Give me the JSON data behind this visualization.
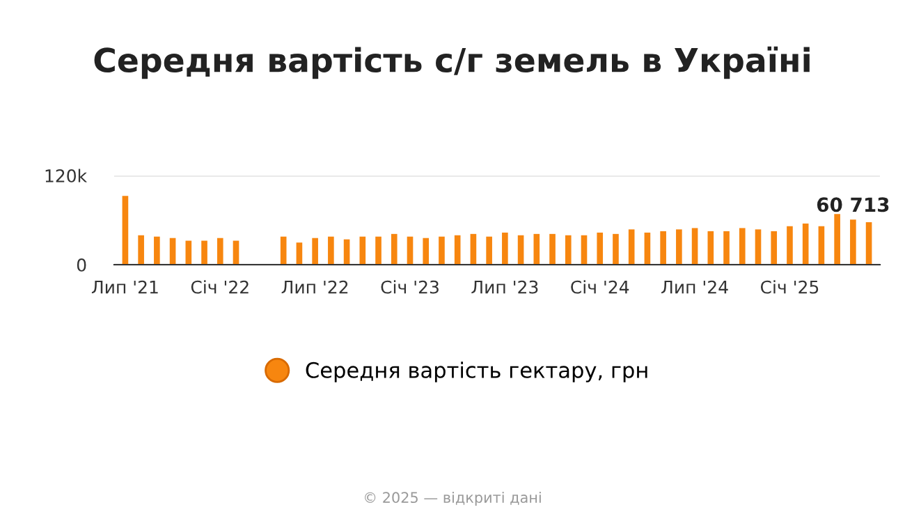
{
  "chart_data": {
    "type": "bar",
    "title": "Середня вартість с/г земель в Україні",
    "categories": [
      "Лип '21",
      null,
      null,
      null,
      null,
      null,
      "Січ '22",
      null,
      null,
      null,
      null,
      null,
      "Лип '22",
      null,
      null,
      null,
      null,
      null,
      "Січ '23",
      null,
      null,
      null,
      null,
      null,
      "Лип '23",
      null,
      null,
      null,
      null,
      null,
      "Січ '24",
      null,
      null,
      null,
      null,
      null,
      "Лип '24",
      null,
      null,
      null,
      null,
      null,
      "Січ '25",
      null,
      null,
      null,
      null,
      null
    ],
    "series": [
      {
        "name": "Середня вартість гектару, грн",
        "color": "#f7860f",
        "values": [
          92600,
          39600,
          37800,
          35900,
          32300,
          32300,
          35900,
          32300,
          null,
          null,
          37800,
          29800,
          35900,
          37800,
          34100,
          37800,
          37800,
          41400,
          37800,
          35900,
          37800,
          39600,
          41400,
          37800,
          43200,
          39600,
          41400,
          41400,
          39600,
          39600,
          43200,
          41400,
          47500,
          43200,
          45100,
          47500,
          49300,
          45100,
          45100,
          49300,
          47500,
          45100,
          51800,
          55400,
          51800,
          68200,
          60713,
          57200
        ],
        "value_labels": [
          null,
          null,
          null,
          null,
          null,
          null,
          null,
          null,
          null,
          null,
          null,
          null,
          null,
          null,
          null,
          null,
          null,
          null,
          null,
          null,
          null,
          null,
          null,
          null,
          null,
          null,
          null,
          null,
          null,
          null,
          null,
          null,
          null,
          null,
          null,
          null,
          null,
          null,
          null,
          null,
          null,
          null,
          null,
          null,
          null,
          null,
          "60 713",
          null
        ]
      }
    ],
    "ylim": [
      0,
      120000
    ],
    "yticks": [
      0,
      {
        "value": 120000,
        "label": "120k"
      }
    ],
    "grid": "y",
    "legend": "bottom",
    "marker": "circle",
    "annotations": [
      "© 2025 — відкриті дані"
    ]
  }
}
